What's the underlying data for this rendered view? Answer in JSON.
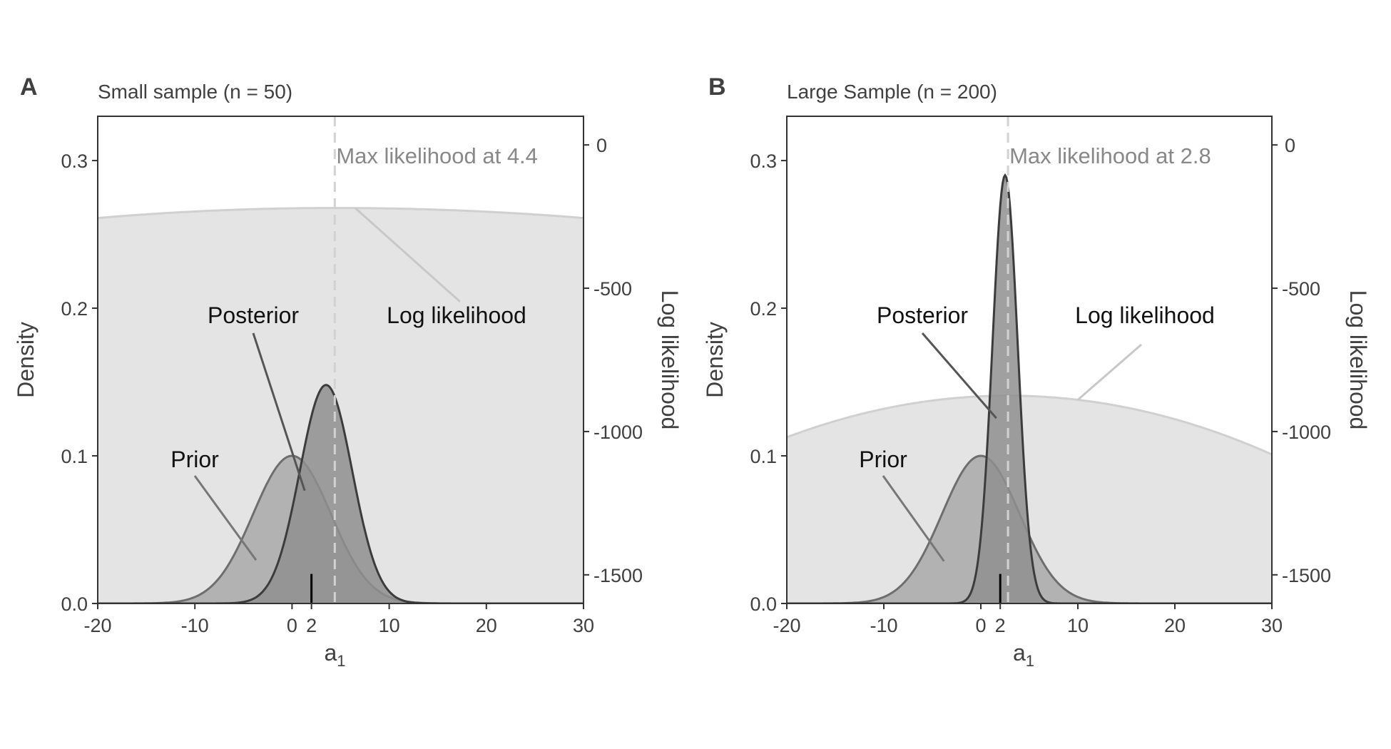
{
  "chart_data": [
    {
      "type": "area",
      "panel_label": "A",
      "title": "Small sample (n = 50)",
      "xlabel": "a",
      "xlabel_subscript": "1",
      "ylabel": "Density",
      "y2label": "Log likelihood",
      "xlim": [
        -20,
        30
      ],
      "ylim": [
        0,
        0.33
      ],
      "y2lim": [
        -1600,
        100
      ],
      "xticks": [
        "-20",
        "-10",
        "0",
        "2",
        "10",
        "20",
        "30"
      ],
      "xtick_values": [
        -20,
        -10,
        0,
        2,
        10,
        20,
        30
      ],
      "yticks": [
        "0.0",
        "0.1",
        "0.2",
        "0.3"
      ],
      "ytick_values": [
        0.0,
        0.1,
        0.2,
        0.3
      ],
      "y2ticks": [
        "0",
        "-500",
        "-1000",
        "-1500"
      ],
      "y2tick_values": [
        0,
        -500,
        -1000,
        -1500
      ],
      "grid": false,
      "series": [
        {
          "name": "Log likelihood",
          "kind": "quadratic",
          "max_at": 4.4,
          "max_value": -220,
          "x_edges": [
            -20,
            30
          ],
          "edge_values": [
            -255,
            -255
          ],
          "axis": "right",
          "color": "#e4e4e4",
          "line_color": "#d0d0d0"
        },
        {
          "name": "Prior",
          "kind": "normal",
          "mean": 0,
          "peak": 0.1,
          "sd": 4,
          "axis": "left",
          "color": "#a9a9a9",
          "line_color": "#6e6e6e"
        },
        {
          "name": "Posterior",
          "kind": "normal",
          "mean": 3.5,
          "peak": 0.148,
          "sd": 2.7,
          "axis": "left",
          "color": "#8f8f8f",
          "line_color": "#3c3c3c"
        }
      ],
      "vline": {
        "x": 4.4,
        "label": "Max likelihood at 4.4"
      },
      "true_value_mark": {
        "x": 2,
        "height": 0.02
      },
      "annotations": [
        {
          "text": "Posterior",
          "series": "Posterior"
        },
        {
          "text": "Log likelihood",
          "series": "Log likelihood"
        },
        {
          "text": "Prior",
          "series": "Prior"
        }
      ]
    },
    {
      "type": "area",
      "panel_label": "B",
      "title": "Large Sample (n = 200)",
      "xlabel": "a",
      "xlabel_subscript": "1",
      "ylabel": "Density",
      "y2label": "Log likelihood",
      "xlim": [
        -20,
        30
      ],
      "ylim": [
        0,
        0.33
      ],
      "y2lim": [
        -1600,
        100
      ],
      "xticks": [
        "-20",
        "-10",
        "0",
        "2",
        "10",
        "20",
        "30"
      ],
      "xtick_values": [
        -20,
        -10,
        0,
        2,
        10,
        20,
        30
      ],
      "yticks": [
        "0.0",
        "0.1",
        "0.2",
        "0.3"
      ],
      "ytick_values": [
        0.0,
        0.1,
        0.2,
        0.3
      ],
      "y2ticks": [
        "0",
        "-500",
        "-1000",
        "-1500"
      ],
      "y2tick_values": [
        0,
        -500,
        -1000,
        -1500
      ],
      "grid": false,
      "series": [
        {
          "name": "Log likelihood",
          "kind": "quadratic",
          "max_at": 2.8,
          "max_value": -875,
          "x_edges": [
            -20,
            30
          ],
          "edge_values": [
            -1020,
            -1080
          ],
          "axis": "right",
          "color": "#e4e4e4",
          "line_color": "#d0d0d0"
        },
        {
          "name": "Prior",
          "kind": "normal",
          "mean": 0,
          "peak": 0.1,
          "sd": 4,
          "axis": "left",
          "color": "#a9a9a9",
          "line_color": "#6e6e6e"
        },
        {
          "name": "Posterior",
          "kind": "normal",
          "mean": 2.5,
          "peak": 0.29,
          "sd": 1.3,
          "axis": "left",
          "color": "#8f8f8f",
          "line_color": "#3c3c3c"
        }
      ],
      "vline": {
        "x": 2.8,
        "label": "Max likelihood at 2.8"
      },
      "true_value_mark": {
        "x": 2,
        "height": 0.02
      },
      "annotations": [
        {
          "text": "Posterior",
          "series": "Posterior"
        },
        {
          "text": "Log likelihood",
          "series": "Log likelihood"
        },
        {
          "text": "Prior",
          "series": "Prior"
        }
      ]
    }
  ]
}
